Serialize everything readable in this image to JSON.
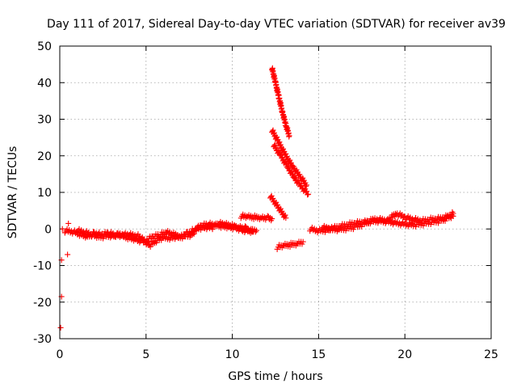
{
  "chart_data": {
    "type": "scatter",
    "title": "Day 111 of 2017, Sidereal Day-to-day VTEC variation (SDTVAR) for receiver av39",
    "xlabel": "GPS time / hours",
    "ylabel": "SDTVAR / TECUs",
    "xlim": [
      0,
      25
    ],
    "ylim": [
      -30,
      50
    ],
    "xticks": [
      0,
      5,
      10,
      15,
      20,
      25
    ],
    "yticks": [
      -30,
      -20,
      -10,
      0,
      10,
      20,
      30,
      40,
      50
    ],
    "grid": true,
    "marker": "+",
    "color": "#ff0000",
    "series": [
      {
        "name": "isolated-early",
        "points": [
          [
            0.05,
            -27
          ],
          [
            0.1,
            -18.5
          ],
          [
            0.1,
            -8.5
          ],
          [
            0.45,
            -7
          ],
          [
            0.5,
            1.5
          ],
          [
            0.3,
            -1
          ],
          [
            0.15,
            0
          ]
        ]
      },
      {
        "name": "main-band-1",
        "points": [
          [
            0.3,
            -0.5
          ],
          [
            0.8,
            -0.8
          ],
          [
            1.2,
            -1.5
          ],
          [
            1.6,
            -2
          ],
          [
            2.0,
            -1.2
          ],
          [
            2.4,
            -1.5
          ],
          [
            2.8,
            -1.2
          ],
          [
            3.2,
            -1.6
          ],
          [
            3.6,
            -2.0
          ],
          [
            4.0,
            -2.4
          ],
          [
            4.4,
            -2.8
          ],
          [
            4.8,
            -3.5
          ],
          [
            5.0,
            -3.0
          ],
          [
            5.4,
            -2.2
          ],
          [
            5.8,
            -1.6
          ],
          [
            6.2,
            -1.0
          ],
          [
            6.6,
            -1.5
          ],
          [
            7.0,
            -2.0
          ],
          [
            7.4,
            -1.2
          ],
          [
            7.8,
            -0.2
          ],
          [
            8.2,
            0.8
          ],
          [
            8.6,
            1.3
          ],
          [
            9.0,
            1.0
          ],
          [
            9.4,
            0.8
          ],
          [
            9.8,
            0.6
          ],
          [
            10.2,
            0.3
          ],
          [
            10.6,
            -0.3
          ],
          [
            11.0,
            -0.6
          ],
          [
            11.4,
            -0.4
          ]
        ]
      },
      {
        "name": "main-band-2",
        "points": [
          [
            1.0,
            -0.4
          ],
          [
            1.5,
            -1.0
          ],
          [
            2.2,
            -2.2
          ],
          [
            3.0,
            -1.8
          ],
          [
            3.8,
            -1.4
          ],
          [
            4.6,
            -2.0
          ],
          [
            5.2,
            -4.5
          ],
          [
            5.6,
            -3.2
          ],
          [
            6.0,
            -2.5
          ],
          [
            6.8,
            -2.4
          ],
          [
            7.6,
            -1.6
          ],
          [
            8.0,
            0.2
          ],
          [
            8.4,
            0.5
          ],
          [
            8.8,
            0.3
          ],
          [
            9.2,
            1.5
          ],
          [
            9.6,
            1.2
          ],
          [
            10.0,
            0.8
          ],
          [
            10.4,
            0.5
          ],
          [
            10.8,
            0.2
          ],
          [
            11.2,
            -0.8
          ]
        ]
      },
      {
        "name": "segment-11-12",
        "points": [
          [
            10.5,
            3.5
          ],
          [
            10.9,
            3.3
          ],
          [
            11.3,
            3.2
          ],
          [
            11.7,
            3.1
          ],
          [
            12.1,
            3.0
          ],
          [
            12.3,
            2.8
          ]
        ]
      },
      {
        "name": "steep-1",
        "points": [
          [
            12.3,
            44
          ],
          [
            12.5,
            40
          ],
          [
            12.7,
            36
          ],
          [
            12.9,
            32
          ],
          [
            13.1,
            28.5
          ],
          [
            13.3,
            25.5
          ]
        ]
      },
      {
        "name": "steep-2",
        "points": [
          [
            12.3,
            27
          ],
          [
            12.7,
            23.5
          ],
          [
            13.1,
            20
          ],
          [
            13.5,
            17
          ],
          [
            13.9,
            14.5
          ],
          [
            14.3,
            12
          ]
        ]
      },
      {
        "name": "steep-3",
        "points": [
          [
            12.4,
            23
          ],
          [
            12.8,
            20
          ],
          [
            13.2,
            17
          ],
          [
            13.6,
            14
          ],
          [
            14.0,
            11.5
          ],
          [
            14.4,
            9.5
          ]
        ]
      },
      {
        "name": "short-segment",
        "points": [
          [
            12.2,
            9
          ],
          [
            12.5,
            7
          ],
          [
            12.8,
            5
          ],
          [
            13.1,
            3
          ]
        ]
      },
      {
        "name": "low-segment",
        "points": [
          [
            12.6,
            -5
          ],
          [
            13.0,
            -4.6
          ],
          [
            13.4,
            -4.3
          ],
          [
            13.8,
            -3.9
          ],
          [
            14.1,
            -3.5
          ]
        ]
      },
      {
        "name": "main-band-3",
        "points": [
          [
            14.5,
            0
          ],
          [
            15.0,
            -0.5
          ],
          [
            15.5,
            -0.3
          ],
          [
            16.0,
            0.4
          ],
          [
            16.5,
            1.0
          ],
          [
            17.0,
            1.5
          ],
          [
            17.5,
            1.8
          ],
          [
            18.0,
            2.0
          ],
          [
            18.5,
            2.2
          ],
          [
            19.0,
            2.0
          ],
          [
            19.5,
            1.6
          ],
          [
            20.0,
            1.3
          ],
          [
            20.5,
            1.1
          ],
          [
            21.0,
            1.4
          ],
          [
            21.5,
            1.8
          ],
          [
            22.0,
            2.2
          ],
          [
            22.5,
            3.0
          ],
          [
            22.8,
            3.5
          ]
        ]
      },
      {
        "name": "main-band-4",
        "points": [
          [
            15.2,
            0.4
          ],
          [
            16.2,
            -0.2
          ],
          [
            17.2,
            0.6
          ],
          [
            18.2,
            2.6
          ],
          [
            19.0,
            2.4
          ],
          [
            19.5,
            4.2
          ],
          [
            20.0,
            3.2
          ],
          [
            20.5,
            2.6
          ],
          [
            21.0,
            2.2
          ],
          [
            21.5,
            2.6
          ],
          [
            22.0,
            2.8
          ],
          [
            22.5,
            3.4
          ],
          [
            22.8,
            4.2
          ]
        ]
      }
    ]
  }
}
